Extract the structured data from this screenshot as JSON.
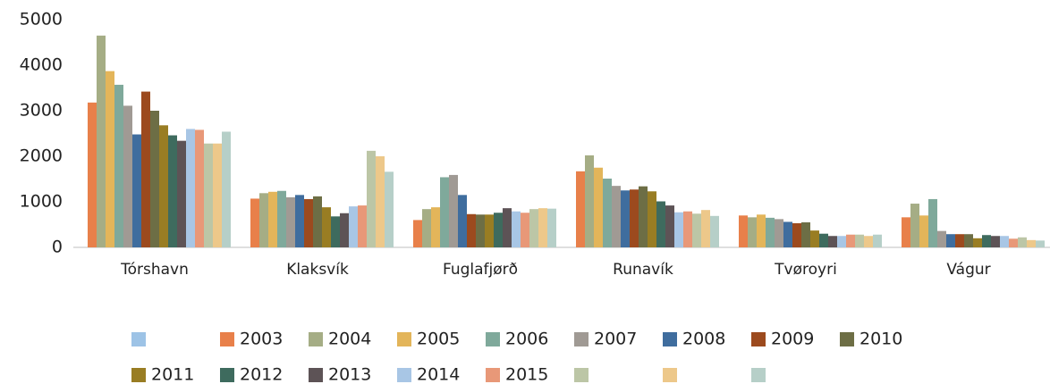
{
  "chart_data": {
    "type": "bar",
    "categories": [
      "Tórshavn",
      "Klaksvík",
      "Fuglafjørð",
      "Runavík",
      "Tvøroyri",
      "Vágur"
    ],
    "ylim": [
      0,
      5000
    ],
    "yticks": [
      0,
      1000,
      2000,
      3000,
      4000,
      5000
    ],
    "grid": false,
    "legend": "bottom",
    "series": [
      {
        "name": null,
        "color": "#9dc3e6",
        "values": [
          null,
          null,
          null,
          null,
          null,
          null
        ]
      },
      {
        "name": "2003",
        "color": "#e8804a",
        "values": [
          3180,
          1070,
          600,
          1670,
          700,
          660
        ]
      },
      {
        "name": "2004",
        "color": "#a5ad85",
        "values": [
          4650,
          1190,
          840,
          2020,
          660,
          960
        ]
      },
      {
        "name": "2005",
        "color": "#e3b55a",
        "values": [
          3870,
          1220,
          880,
          1750,
          720,
          700
        ]
      },
      {
        "name": "2006",
        "color": "#7fa99b",
        "values": [
          3570,
          1240,
          1540,
          1510,
          650,
          1060
        ]
      },
      {
        "name": "2007",
        "color": "#a09a94",
        "values": [
          3110,
          1100,
          1590,
          1350,
          620,
          360
        ]
      },
      {
        "name": "2008",
        "color": "#3f6d9e",
        "values": [
          2480,
          1150,
          1150,
          1250,
          560,
          290
        ]
      },
      {
        "name": "2009",
        "color": "#9c4a1e",
        "values": [
          3420,
          1060,
          730,
          1270,
          530,
          290
        ]
      },
      {
        "name": "2010",
        "color": "#6d6e45",
        "values": [
          3000,
          1120,
          720,
          1340,
          550,
          290
        ]
      },
      {
        "name": "2011",
        "color": "#997d23",
        "values": [
          2680,
          880,
          720,
          1230,
          370,
          200
        ]
      },
      {
        "name": "2012",
        "color": "#3e6b5e",
        "values": [
          2460,
          680,
          760,
          1010,
          300,
          270
        ]
      },
      {
        "name": "2013",
        "color": "#5d5356",
        "values": [
          2340,
          750,
          860,
          920,
          250,
          250
        ]
      },
      {
        "name": "2014",
        "color": "#a8c6e5",
        "values": [
          2600,
          900,
          790,
          770,
          250,
          250
        ]
      },
      {
        "name": "2015",
        "color": "#e89878",
        "values": [
          2580,
          920,
          760,
          790,
          280,
          190
        ]
      },
      {
        "name": null,
        "color": "#bcc6a6",
        "values": [
          2280,
          2120,
          840,
          740,
          280,
          220
        ]
      },
      {
        "name": null,
        "color": "#edc88a",
        "values": [
          2280,
          2000,
          860,
          820,
          250,
          160
        ]
      },
      {
        "name": null,
        "color": "#b6cfc8",
        "values": [
          2540,
          1660,
          850,
          690,
          280,
          150
        ]
      }
    ]
  }
}
